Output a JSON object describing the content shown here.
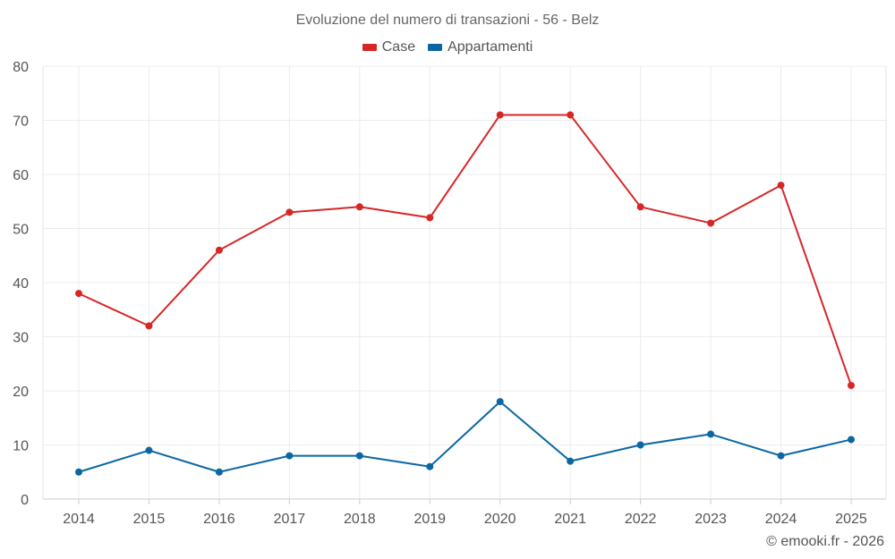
{
  "chart_data": {
    "type": "line",
    "title": "Evoluzione del numero di transazioni - 56 - Belz",
    "categories": [
      "2014",
      "2015",
      "2016",
      "2017",
      "2018",
      "2019",
      "2020",
      "2021",
      "2022",
      "2023",
      "2024",
      "2025"
    ],
    "series": [
      {
        "name": "Case",
        "color": "#d62728",
        "values": [
          38,
          32,
          46,
          53,
          54,
          52,
          71,
          71,
          54,
          51,
          58,
          21
        ]
      },
      {
        "name": "Appartamenti",
        "color": "#0a67a3",
        "values": [
          5,
          9,
          5,
          8,
          8,
          6,
          18,
          7,
          10,
          12,
          8,
          11
        ]
      }
    ],
    "yticks": [
      0,
      10,
      20,
      30,
      40,
      50,
      60,
      70,
      80
    ],
    "ylim": [
      0,
      80
    ],
    "grid": true,
    "legend_position": "top-center",
    "xlabel": "",
    "ylabel": ""
  },
  "credit": "© emooki.fr - 2026"
}
